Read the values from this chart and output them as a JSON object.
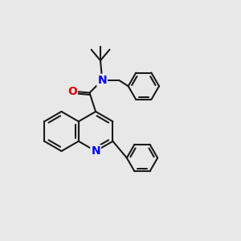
{
  "background_color": "#e8e8e8",
  "bond_color": "#1a1a1a",
  "bond_width": 1.5,
  "atom_colors": {
    "N": "#0000ee",
    "O": "#dd0000"
  },
  "font_size_atom": 10,
  "figsize": [
    3.0,
    3.0
  ],
  "dpi": 100
}
